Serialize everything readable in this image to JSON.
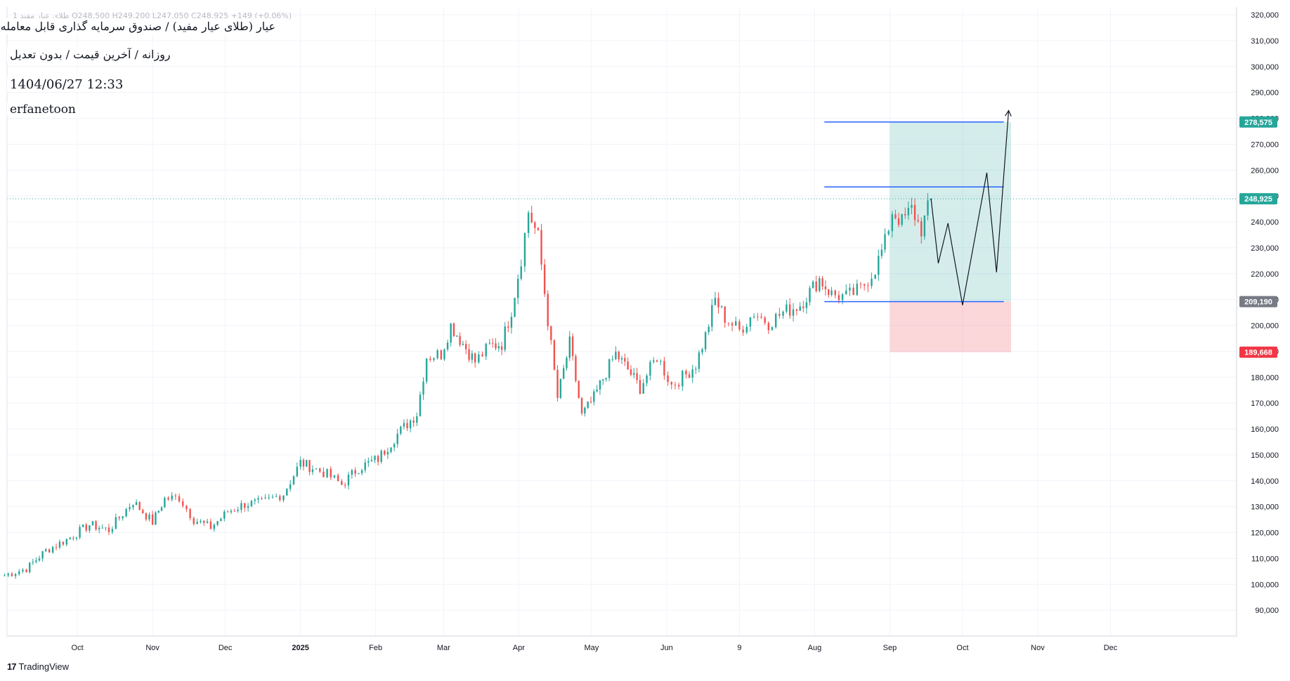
{
  "header": {
    "ohlc_text": "طلای عیار مفید 1 O248,500 H249,200 L247,050 C248,925 +149 (+0.06%)",
    "title": "عیار (طلای عیار مفید) / صندوق سرمایه گذاری قابل معامله",
    "subtitle": "روزانه / آخرین قیمت / بدون تعدیل",
    "datetime": "1404/06/27 12:33",
    "author": "erfanetoon"
  },
  "watermark": {
    "logo": "17",
    "text": "TradingView"
  },
  "colors": {
    "up": "#26a69a",
    "down": "#ef5350",
    "grid": "#f0f3fa",
    "axis_text": "#131722",
    "tp_zone": "#26a69a",
    "sl_zone": "#f23645",
    "level_line": "#2962ff",
    "current_line": "#26a69a",
    "label_gray": "#787b86"
  },
  "chart_data": {
    "type": "candlestick",
    "y_range": [
      80000,
      323000
    ],
    "y_ticks": [
      "90,000",
      "100,000",
      "110,000",
      "120,000",
      "130,000",
      "140,000",
      "150,000",
      "160,000",
      "170,000",
      "180,000",
      "190,000",
      "200,000",
      "210,000",
      "220,000",
      "230,000",
      "240,000",
      "250,000",
      "260,000",
      "270,000",
      "280,000",
      "290,000",
      "300,000",
      "310,000",
      "320,000"
    ],
    "x_range": [
      "2024-09-02",
      "2026-01-22"
    ],
    "x_ticks": [
      {
        "date": "2024-10-01",
        "label": "Oct",
        "bold": false
      },
      {
        "date": "2024-11-01",
        "label": "Nov",
        "bold": false
      },
      {
        "date": "2024-12-01",
        "label": "Dec",
        "bold": false
      },
      {
        "date": "2025-01-01",
        "label": "2025",
        "bold": true
      },
      {
        "date": "2025-02-01",
        "label": "Feb",
        "bold": false
      },
      {
        "date": "2025-03-01",
        "label": "Mar",
        "bold": false
      },
      {
        "date": "2025-04-01",
        "label": "Apr",
        "bold": false
      },
      {
        "date": "2025-05-01",
        "label": "May",
        "bold": false
      },
      {
        "date": "2025-06-01",
        "label": "Jun",
        "bold": false
      },
      {
        "date": "2025-07-01",
        "label": "9",
        "bold": false
      },
      {
        "date": "2025-08-01",
        "label": "Aug",
        "bold": false
      },
      {
        "date": "2025-09-01",
        "label": "Sep",
        "bold": false
      },
      {
        "date": "2025-10-01",
        "label": "Oct",
        "bold": false
      },
      {
        "date": "2025-11-01",
        "label": "Nov",
        "bold": false
      },
      {
        "date": "2025-12-01",
        "label": "Dec",
        "bold": false
      }
    ],
    "series_close": [
      [
        "2024-09-01",
        103500
      ],
      [
        "2024-09-10",
        106000
      ],
      [
        "2024-09-18",
        113000
      ],
      [
        "2024-09-28",
        118000
      ],
      [
        "2024-10-06",
        123000
      ],
      [
        "2024-10-14",
        121000
      ],
      [
        "2024-10-24",
        132000
      ],
      [
        "2024-11-01",
        124000
      ],
      [
        "2024-11-06",
        133000
      ],
      [
        "2024-11-12",
        133500
      ],
      [
        "2024-11-18",
        125000
      ],
      [
        "2024-11-25",
        122000
      ],
      [
        "2024-12-02",
        128000
      ],
      [
        "2024-12-09",
        131000
      ],
      [
        "2024-12-16",
        131500
      ],
      [
        "2024-12-25",
        135000
      ],
      [
        "2025-01-01",
        147000
      ],
      [
        "2025-01-06",
        145000
      ],
      [
        "2025-01-12",
        142500
      ],
      [
        "2025-01-18",
        138500
      ],
      [
        "2025-01-25",
        145000
      ],
      [
        "2025-02-02",
        148500
      ],
      [
        "2025-02-10",
        158000
      ],
      [
        "2025-02-18",
        166000
      ],
      [
        "2025-02-22",
        188000
      ],
      [
        "2025-02-28",
        189000
      ],
      [
        "2025-03-04",
        200000
      ],
      [
        "2025-03-09",
        193000
      ],
      [
        "2025-03-14",
        186000
      ],
      [
        "2025-03-20",
        192000
      ],
      [
        "2025-03-25",
        193000
      ],
      [
        "2025-03-29",
        206000
      ],
      [
        "2025-04-02",
        226000
      ],
      [
        "2025-04-05",
        244000
      ],
      [
        "2025-04-09",
        234000
      ],
      [
        "2025-04-13",
        202000
      ],
      [
        "2025-04-17",
        172000
      ],
      [
        "2025-04-22",
        193000
      ],
      [
        "2025-04-27",
        165000
      ],
      [
        "2025-05-02",
        172000
      ],
      [
        "2025-05-07",
        182000
      ],
      [
        "2025-05-11",
        189000
      ],
      [
        "2025-05-16",
        183000
      ],
      [
        "2025-05-21",
        176000
      ],
      [
        "2025-05-28",
        188000
      ],
      [
        "2025-06-03",
        177000
      ],
      [
        "2025-06-09",
        181000
      ],
      [
        "2025-06-13",
        185000
      ],
      [
        "2025-06-17",
        196000
      ],
      [
        "2025-06-21",
        210000
      ],
      [
        "2025-06-25",
        203000
      ],
      [
        "2025-07-01",
        198000
      ],
      [
        "2025-07-07",
        205000
      ],
      [
        "2025-07-13",
        201000
      ],
      [
        "2025-07-19",
        205000
      ],
      [
        "2025-07-26",
        208000
      ],
      [
        "2025-08-03",
        218000
      ],
      [
        "2025-08-08",
        212000
      ],
      [
        "2025-08-14",
        211000
      ],
      [
        "2025-08-20",
        214000
      ],
      [
        "2025-08-26",
        222000
      ],
      [
        "2025-08-30",
        232000
      ],
      [
        "2025-09-02",
        244000
      ],
      [
        "2025-09-06",
        240000
      ],
      [
        "2025-09-10",
        245000
      ],
      [
        "2025-09-14",
        237000
      ],
      [
        "2025-09-18",
        248925
      ]
    ],
    "current_price": "248,925",
    "current_price_value": 248925,
    "position": {
      "entry_label": "209,190",
      "entry": 209190,
      "target_label": "278,575",
      "target": 278575,
      "stop_label": "189,668",
      "stop": 189668,
      "start_date": "2025-09-01",
      "end_date": "2025-10-21"
    },
    "horizontal_lines": [
      {
        "value": 278575,
        "from": "2025-08-05",
        "to": "2025-10-18"
      },
      {
        "value": 253500,
        "from": "2025-08-05",
        "to": "2025-10-18"
      },
      {
        "value": 209190,
        "from": "2025-08-05",
        "to": "2025-10-18"
      }
    ],
    "forecast_path": [
      [
        "2025-09-18",
        249000
      ],
      [
        "2025-09-21",
        224000
      ],
      [
        "2025-09-25",
        239500
      ],
      [
        "2025-10-01",
        207800
      ],
      [
        "2025-10-11",
        259000
      ],
      [
        "2025-10-15",
        220500
      ],
      [
        "2025-10-20",
        283000
      ]
    ]
  }
}
